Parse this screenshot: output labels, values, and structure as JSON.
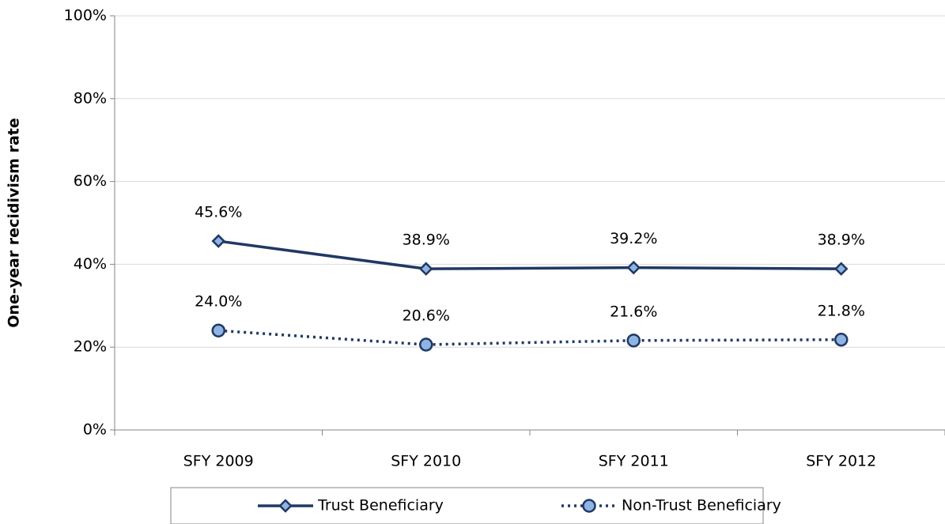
{
  "chart_data": {
    "type": "line",
    "y_label": "One-year recidivism rate",
    "categories": [
      "SFY 2009",
      "SFY 2010",
      "SFY 2011",
      "SFY 2012"
    ],
    "series": [
      {
        "name": "Trust Beneficiary",
        "color": "#203864",
        "marker": "diamond",
        "dash": "solid",
        "values": [
          45.6,
          38.9,
          39.2,
          38.9
        ],
        "value_labels": [
          "45.6%",
          "38.9%",
          "39.2%",
          "38.9%"
        ]
      },
      {
        "name": "Non-Trust Beneficiary",
        "color": "#203864",
        "marker": "circle",
        "dash": "dotted",
        "values": [
          24.0,
          20.6,
          21.6,
          21.8
        ],
        "value_labels": [
          "24.0%",
          "20.6%",
          "21.6%",
          "21.8%"
        ]
      }
    ],
    "ylim": [
      0,
      100
    ],
    "yticks": [
      {
        "value": 0,
        "label": "0%"
      },
      {
        "value": 20,
        "label": "20%"
      },
      {
        "value": 40,
        "label": "40%"
      },
      {
        "value": 60,
        "label": "60%"
      },
      {
        "value": 80,
        "label": "80%"
      },
      {
        "value": 100,
        "label": "100%"
      }
    ],
    "grid": true,
    "legend": "bottom"
  }
}
